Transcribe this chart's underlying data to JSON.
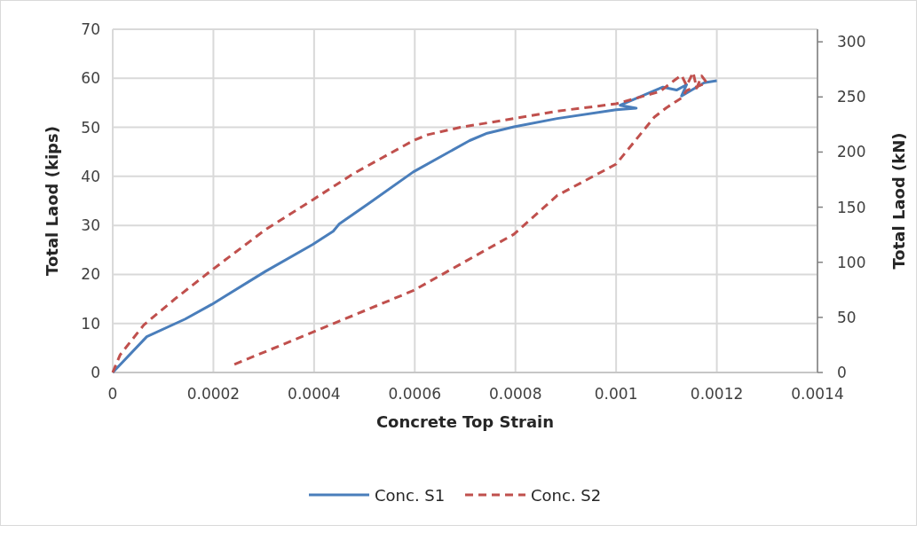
{
  "chart_data": {
    "type": "line",
    "xlabel": "Concrete Top Strain",
    "ylabel": "Total Laod (kips)",
    "y2label": "Total Laod (kN)",
    "xlim": [
      0,
      0.0014
    ],
    "xticks": [
      0,
      0.0002,
      0.0004,
      0.0006,
      0.0008,
      0.001,
      0.0012,
      0.0014
    ],
    "ylim": [
      0,
      70
    ],
    "yticks": [
      0,
      10,
      20,
      30,
      40,
      50,
      60,
      70
    ],
    "y2lim": [
      0,
      311.4
    ],
    "y2ticks": [
      0,
      50,
      100,
      150,
      200,
      250,
      300
    ],
    "grid": true,
    "legend": "bottom",
    "marker": "none",
    "series": [
      {
        "name": "Conc. S1",
        "color": "#4a7ebb",
        "line_style": "solid",
        "x": [
          0,
          6.76e-05,
          0.000144,
          0.000197,
          0.000303,
          0.000397,
          0.000438,
          0.00045,
          0.000509,
          0.000597,
          0.000709,
          0.000744,
          0.000797,
          0.000883,
          0.001,
          0.00104,
          0.001008,
          0.001093,
          0.00112,
          0.00114,
          0.00113,
          0.001175,
          0.0012
        ],
        "values": [
          0,
          7.3,
          10.9,
          13.9,
          20.6,
          26.1,
          28.8,
          30.3,
          34.5,
          40.9,
          47.3,
          48.8,
          50.1,
          51.8,
          53.6,
          53.9,
          54.5,
          58.2,
          57.6,
          58.7,
          56.4,
          59.1,
          59.5
        ]
      },
      {
        "name": "Conc. S2",
        "color": "#c0504d",
        "line_style": "dashed",
        "x": [
          0,
          1.47e-05,
          6.18e-05,
          0.000126,
          0.000197,
          0.000303,
          0.000397,
          0.000479,
          0.000597,
          0.000626,
          0.000691,
          0.000797,
          0.000883,
          0.001,
          0.001087,
          0.001117,
          0.00113,
          0.00114,
          0.001153,
          0.00116,
          0.00117,
          0.00118,
          0.00114,
          0.00113,
          0.0011,
          0.001076,
          0.001,
          0.000883,
          0.000797,
          0.000597,
          0.000397,
          0.000238
        ],
        "values": [
          0,
          3.6,
          9.7,
          15.2,
          20.9,
          29.1,
          35.2,
          40.6,
          47.3,
          48.5,
          50,
          51.8,
          53.3,
          54.8,
          57.3,
          59.7,
          60.6,
          58.5,
          61.2,
          58,
          60.5,
          59.1,
          57.5,
          56,
          54,
          52.1,
          42.5,
          36.1,
          28.2,
          16.7,
          8.2,
          1.5
        ]
      }
    ]
  }
}
